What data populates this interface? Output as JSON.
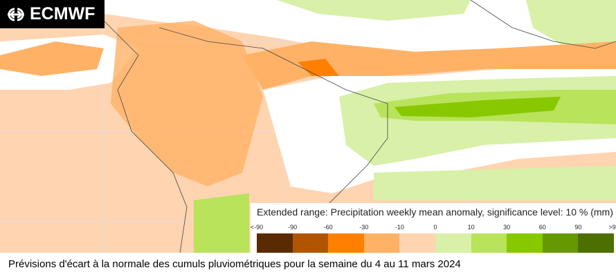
{
  "logo": {
    "text": "ECMWF"
  },
  "map": {
    "background": "#ffd4b0"
  },
  "legend": {
    "title": "Extended range: Precipitation weekly mean anomaly, significance level: 10 % (mm)",
    "ticks": [
      "<-90",
      "-90",
      "-60",
      "-30",
      "-10",
      "0",
      "10",
      "30",
      "60",
      "90",
      ">90"
    ],
    "colors": [
      "#5a2a00",
      "#b05400",
      "#ff8000",
      "#ffb266",
      "#ffd4b0",
      "#d8f0a8",
      "#b8e35a",
      "#88c800",
      "#669900",
      "#4d6e00"
    ]
  },
  "caption": "Prévisions d'écart  à la normale des cumuls pluviométriques pour la semaine du 4 au 11 mars 2024"
}
